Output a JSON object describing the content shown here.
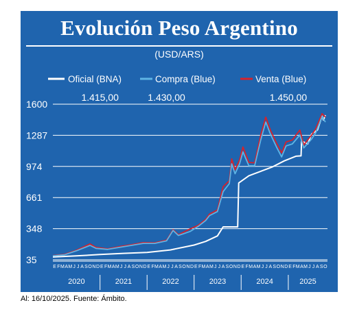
{
  "page": {
    "title": "Evolución Peso Argentino",
    "subtitle": "(USD/ARS)",
    "footer": "Al: 16/10/2025. Fuente: Ámbito."
  },
  "colors": {
    "background": "#1f64ae",
    "official": "#ffffff",
    "blue_buy": "#5fb4e4",
    "blue_sell": "#d6222b",
    "grid": "#ffffff",
    "text": "#ffffff"
  },
  "chart_data": {
    "type": "line",
    "title": "Evolución Peso Argentino",
    "subtitle": "(USD/ARS)",
    "ylim": [
      35,
      1600
    ],
    "yticks": [
      35,
      348,
      661,
      974,
      1287,
      1600
    ],
    "grid": true,
    "legend_placement": "top",
    "month_labels": [
      "E",
      "F",
      "M",
      "A",
      "M",
      "J",
      "J",
      "A",
      "S",
      "O",
      "N",
      "D"
    ],
    "years": [
      "2020",
      "2021",
      "2022",
      "2023",
      "2024",
      "2025"
    ],
    "x_start": "2020-01",
    "x_end": "2025-10",
    "annotations": [
      {
        "text": "1.415,00",
        "x": "2021-01"
      },
      {
        "text": "1.430,00",
        "x": "2022-06"
      },
      {
        "text": "1.450,00",
        "x": "2025-01"
      }
    ],
    "series": [
      {
        "name": "Oficial (BNA)",
        "color": "#ffffff",
        "points": [
          [
            "2020-01-01",
            63
          ],
          [
            "2020-07-01",
            74
          ],
          [
            "2021-01-01",
            88
          ],
          [
            "2021-07-01",
            100
          ],
          [
            "2022-01-01",
            109
          ],
          [
            "2022-07-01",
            134
          ],
          [
            "2023-01-01",
            183
          ],
          [
            "2023-04-01",
            220
          ],
          [
            "2023-07-01",
            275
          ],
          [
            "2023-08-14",
            366
          ],
          [
            "2023-12-05",
            366
          ],
          [
            "2023-12-13",
            808
          ],
          [
            "2024-03-01",
            880
          ],
          [
            "2024-06-01",
            925
          ],
          [
            "2024-09-01",
            970
          ],
          [
            "2024-12-01",
            1030
          ],
          [
            "2025-03-01",
            1077
          ],
          [
            "2025-04-10",
            1080
          ],
          [
            "2025-04-14",
            1230
          ],
          [
            "2025-06-01",
            1200
          ],
          [
            "2025-07-01",
            1300
          ],
          [
            "2025-08-15",
            1340
          ],
          [
            "2025-09-20",
            1480
          ],
          [
            "2025-10-01",
            1440
          ],
          [
            "2025-10-16",
            1490
          ]
        ]
      },
      {
        "name": "Compra (Blue)",
        "color": "#5fb4e4",
        "points": [
          [
            "2020-01-01",
            75
          ],
          [
            "2020-04-01",
            85
          ],
          [
            "2020-07-01",
            125
          ],
          [
            "2020-10-15",
            180
          ],
          [
            "2020-12-01",
            150
          ],
          [
            "2021-03-01",
            140
          ],
          [
            "2021-06-01",
            160
          ],
          [
            "2021-09-01",
            180
          ],
          [
            "2021-12-01",
            200
          ],
          [
            "2022-03-01",
            200
          ],
          [
            "2022-06-01",
            225
          ],
          [
            "2022-07-22",
            330
          ],
          [
            "2022-09-01",
            280
          ],
          [
            "2022-12-01",
            320
          ],
          [
            "2023-02-01",
            370
          ],
          [
            "2023-04-01",
            430
          ],
          [
            "2023-05-01",
            480
          ],
          [
            "2023-07-01",
            520
          ],
          [
            "2023-08-14",
            720
          ],
          [
            "2023-10-01",
            800
          ],
          [
            "2023-10-20",
            1000
          ],
          [
            "2023-11-15",
            900
          ],
          [
            "2023-12-20",
            1000
          ],
          [
            "2024-01-15",
            1120
          ],
          [
            "2024-03-01",
            980
          ],
          [
            "2024-04-15",
            980
          ],
          [
            "2024-06-01",
            1240
          ],
          [
            "2024-07-10",
            1420
          ],
          [
            "2024-08-15",
            1300
          ],
          [
            "2024-10-01",
            1170
          ],
          [
            "2024-11-10",
            1070
          ],
          [
            "2024-12-15",
            1180
          ],
          [
            "2025-02-01",
            1200
          ],
          [
            "2025-04-01",
            1290
          ],
          [
            "2025-05-01",
            1160
          ],
          [
            "2025-07-01",
            1250
          ],
          [
            "2025-08-01",
            1310
          ],
          [
            "2025-09-20",
            1475
          ],
          [
            "2025-10-16",
            1420
          ]
        ]
      },
      {
        "name": "Venta (Blue)",
        "color": "#d6222b",
        "points": [
          [
            "2020-01-01",
            78
          ],
          [
            "2020-04-01",
            90
          ],
          [
            "2020-07-01",
            131
          ],
          [
            "2020-10-15",
            195
          ],
          [
            "2020-12-01",
            160
          ],
          [
            "2021-03-01",
            145
          ],
          [
            "2021-06-01",
            168
          ],
          [
            "2021-09-01",
            187
          ],
          [
            "2021-12-01",
            208
          ],
          [
            "2022-03-01",
            205
          ],
          [
            "2022-06-01",
            233
          ],
          [
            "2022-07-22",
            338
          ],
          [
            "2022-09-01",
            287
          ],
          [
            "2022-12-01",
            346
          ],
          [
            "2023-02-01",
            381
          ],
          [
            "2023-04-01",
            442
          ],
          [
            "2023-05-01",
            495
          ],
          [
            "2023-07-01",
            537
          ],
          [
            "2023-08-14",
            770
          ],
          [
            "2023-10-01",
            830
          ],
          [
            "2023-10-20",
            1050
          ],
          [
            "2023-11-15",
            940
          ],
          [
            "2023-12-20",
            1040
          ],
          [
            "2024-01-15",
            1170
          ],
          [
            "2024-03-01",
            1015
          ],
          [
            "2024-04-15",
            1010
          ],
          [
            "2024-06-01",
            1290
          ],
          [
            "2024-07-10",
            1470
          ],
          [
            "2024-08-15",
            1340
          ],
          [
            "2024-10-01",
            1210
          ],
          [
            "2024-11-10",
            1110
          ],
          [
            "2024-12-15",
            1220
          ],
          [
            "2025-02-01",
            1240
          ],
          [
            "2025-04-01",
            1340
          ],
          [
            "2025-05-01",
            1190
          ],
          [
            "2025-07-01",
            1290
          ],
          [
            "2025-08-01",
            1350
          ],
          [
            "2025-09-20",
            1505
          ],
          [
            "2025-10-16",
            1470
          ]
        ]
      }
    ]
  }
}
